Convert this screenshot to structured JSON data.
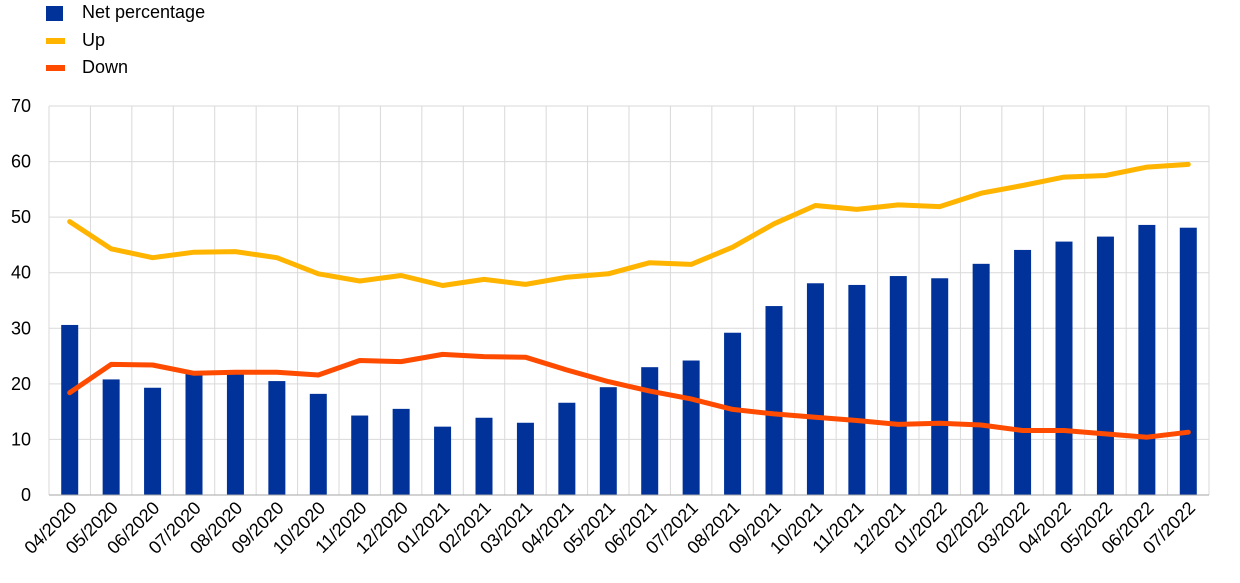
{
  "chart_data": {
    "type": "bar",
    "title": "",
    "xlabel": "",
    "ylabel": "",
    "ylim": [
      0,
      70
    ],
    "yticks": [
      0,
      10,
      20,
      30,
      40,
      50,
      60,
      70
    ],
    "grid": true,
    "legend_position": "top-left",
    "categories": [
      "04/2020",
      "05/2020",
      "06/2020",
      "07/2020",
      "08/2020",
      "09/2020",
      "10/2020",
      "11/2020",
      "12/2020",
      "01/2021",
      "02/2021",
      "03/2021",
      "04/2021",
      "05/2021",
      "06/2021",
      "07/2021",
      "08/2021",
      "09/2021",
      "10/2021",
      "11/2021",
      "12/2021",
      "01/2022",
      "02/2022",
      "03/2022",
      "04/2022",
      "05/2022",
      "06/2022",
      "07/2022"
    ],
    "series": [
      {
        "name": "Net percentage",
        "kind": "bar",
        "color": "#003299",
        "values": [
          30.6,
          20.8,
          19.3,
          21.8,
          21.8,
          20.5,
          18.2,
          14.3,
          15.5,
          12.3,
          13.9,
          13.0,
          16.6,
          19.4,
          23.0,
          24.2,
          29.2,
          34.0,
          38.1,
          37.8,
          39.4,
          39.0,
          41.6,
          44.1,
          45.6,
          46.5,
          48.6,
          48.1
        ]
      },
      {
        "name": "Up",
        "kind": "line",
        "color": "#FFB400",
        "values": [
          49.2,
          44.3,
          42.7,
          43.7,
          43.8,
          42.7,
          39.8,
          38.5,
          39.5,
          37.7,
          38.8,
          37.9,
          39.2,
          39.8,
          41.8,
          41.5,
          44.6,
          48.8,
          52.1,
          51.4,
          52.2,
          51.9,
          54.3,
          55.7,
          57.2,
          57.5,
          59.0,
          59.5
        ]
      },
      {
        "name": "Down",
        "kind": "line",
        "color": "#FF4B00",
        "values": [
          18.4,
          23.5,
          23.4,
          21.9,
          22.1,
          22.1,
          21.6,
          24.2,
          24.0,
          25.3,
          24.9,
          24.8,
          22.5,
          20.4,
          18.7,
          17.3,
          15.4,
          14.6,
          14.0,
          13.4,
          12.7,
          12.9,
          12.6,
          11.6,
          11.6,
          11.0,
          10.4,
          11.3
        ]
      }
    ]
  }
}
